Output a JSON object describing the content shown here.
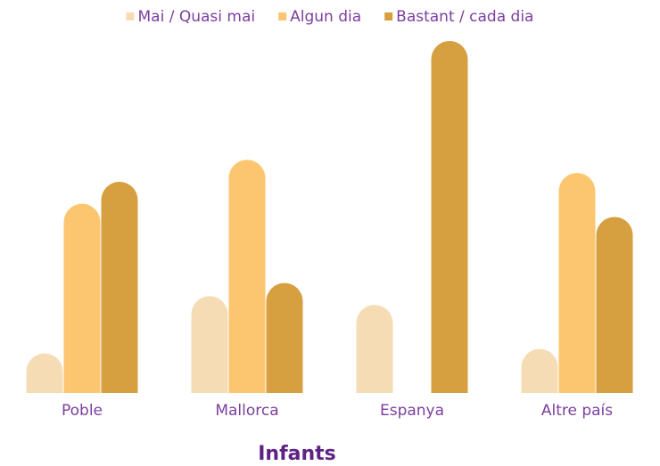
{
  "chart_data": {
    "type": "bar",
    "title": "Infants",
    "categories": [
      "Poble",
      "Mallorca",
      "Espanya",
      "Altre país"
    ],
    "series": [
      {
        "name": "Mai / Quasi mai",
        "color": "#f5dcb4",
        "values": [
          9,
          22,
          20,
          10
        ]
      },
      {
        "name": "Algun dia",
        "color": "#fcc670",
        "values": [
          43,
          53,
          0,
          50
        ]
      },
      {
        "name": "Bastant / cada dia",
        "color": "#d6a041",
        "values": [
          48,
          25,
          80,
          40
        ]
      }
    ],
    "legend": "top"
  }
}
